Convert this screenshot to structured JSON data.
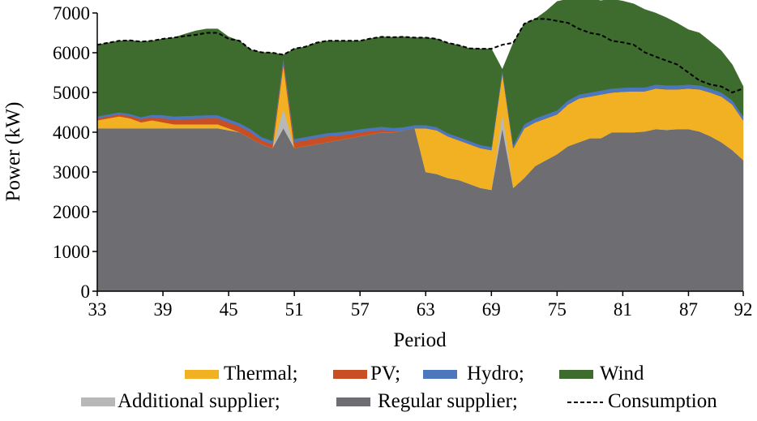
{
  "chart_data": {
    "type": "area",
    "stacked": true,
    "xlabel": "Period",
    "ylabel": "Power (kW)",
    "ylim": [
      0,
      7000
    ],
    "xlim": [
      33,
      92
    ],
    "yticks": [
      "0",
      "1000",
      "2000",
      "3000",
      "4000",
      "5000",
      "6000",
      "7000"
    ],
    "xticks": [
      "33",
      "39",
      "45",
      "51",
      "57",
      "63",
      "69",
      "75",
      "81",
      "87",
      "92"
    ],
    "x": [
      33,
      34,
      35,
      36,
      37,
      38,
      39,
      40,
      41,
      42,
      43,
      44,
      45,
      46,
      47,
      48,
      49,
      50,
      51,
      52,
      53,
      54,
      55,
      56,
      57,
      58,
      59,
      60,
      61,
      62,
      63,
      64,
      65,
      66,
      67,
      68,
      69,
      70,
      71,
      72,
      73,
      74,
      75,
      76,
      77,
      78,
      79,
      80,
      81,
      82,
      83,
      84,
      85,
      86,
      87,
      88,
      89,
      90,
      91,
      92
    ],
    "series": [
      {
        "name": "Regular supplier",
        "color": "#6e6d71",
        "values": [
          4100,
          4100,
          4100,
          4100,
          4100,
          4100,
          4100,
          4100,
          4100,
          4100,
          4100,
          4100,
          4050,
          4000,
          3850,
          3700,
          3600,
          4100,
          3600,
          3650,
          3700,
          3750,
          3800,
          3850,
          3900,
          3950,
          4000,
          4000,
          4050,
          4100,
          3000,
          2950,
          2850,
          2800,
          2700,
          2600,
          2550,
          4100,
          2600,
          2850,
          3150,
          3300,
          3450,
          3650,
          3750,
          3850,
          3850,
          4000,
          4000,
          4000,
          4020,
          4080,
          4060,
          4080,
          4080,
          4020,
          3900,
          3750,
          3550,
          3300
        ]
      },
      {
        "name": "Additional supplier",
        "color": "#b8b8b8",
        "values": [
          0,
          0,
          0,
          0,
          0,
          0,
          0,
          0,
          0,
          0,
          0,
          0,
          0,
          0,
          0,
          0,
          0,
          500,
          0,
          0,
          0,
          0,
          0,
          0,
          0,
          0,
          0,
          0,
          0,
          0,
          0,
          0,
          0,
          0,
          0,
          0,
          0,
          400,
          0,
          0,
          0,
          0,
          0,
          0,
          0,
          0,
          0,
          0,
          0,
          0,
          0,
          0,
          0,
          0,
          0,
          0,
          0,
          0,
          0,
          0
        ]
      },
      {
        "name": "Thermal",
        "color": "#f2b122",
        "values": [
          200,
          250,
          300,
          250,
          150,
          200,
          150,
          100,
          100,
          100,
          100,
          100,
          50,
          0,
          0,
          0,
          0,
          1100,
          0,
          0,
          0,
          0,
          0,
          0,
          0,
          0,
          0,
          0,
          0,
          0,
          1100,
          1100,
          1050,
          1000,
          1000,
          1000,
          1000,
          1000,
          1000,
          1250,
          1100,
          1050,
          1000,
          1050,
          1100,
          1050,
          1100,
          1000,
          1020,
          1030,
          1010,
          1020,
          1020,
          1000,
          1020,
          1060,
          1100,
          1150,
          1150,
          1000
        ]
      },
      {
        "name": "PV",
        "color": "#c84f23",
        "values": [
          50,
          50,
          50,
          60,
          80,
          80,
          100,
          120,
          130,
          140,
          150,
          150,
          150,
          150,
          150,
          100,
          100,
          100,
          150,
          150,
          150,
          150,
          120,
          100,
          100,
          80,
          60,
          30,
          0,
          0,
          0,
          0,
          0,
          0,
          0,
          0,
          0,
          0,
          0,
          0,
          0,
          0,
          0,
          0,
          0,
          0,
          0,
          0,
          0,
          0,
          0,
          0,
          0,
          0,
          0,
          0,
          0,
          0,
          0,
          0
        ]
      },
      {
        "name": "Hydro",
        "color": "#4d77bd",
        "values": [
          50,
          50,
          50,
          50,
          50,
          60,
          80,
          80,
          80,
          80,
          80,
          80,
          80,
          80,
          80,
          80,
          80,
          80,
          80,
          80,
          80,
          80,
          80,
          80,
          80,
          80,
          80,
          80,
          80,
          80,
          80,
          80,
          80,
          80,
          80,
          80,
          80,
          80,
          80,
          100,
          100,
          100,
          100,
          100,
          100,
          100,
          100,
          100,
          100,
          100,
          100,
          100,
          100,
          100,
          100,
          100,
          100,
          100,
          100,
          100
        ]
      },
      {
        "name": "Wind",
        "color": "#3e6b2e",
        "values": [
          1800,
          1800,
          1800,
          1850,
          1900,
          1860,
          1920,
          1980,
          2060,
          2130,
          2170,
          2170,
          2070,
          2070,
          2000,
          2130,
          2220,
          70,
          2270,
          2270,
          2320,
          2320,
          2300,
          2270,
          2220,
          2250,
          2260,
          2280,
          2270,
          2200,
          2200,
          2220,
          2270,
          2310,
          2330,
          2420,
          2470,
          0,
          2570,
          2530,
          2500,
          2600,
          2740,
          2550,
          2450,
          2360,
          2260,
          2250,
          2180,
          2100,
          1960,
          1800,
          1700,
          1560,
          1380,
          1320,
          1180,
          1050,
          900,
          750
        ]
      }
    ],
    "consumption": {
      "name": "Consumption",
      "style": "dashed",
      "values": [
        6200,
        6250,
        6300,
        6310,
        6280,
        6300,
        6350,
        6380,
        6420,
        6450,
        6500,
        6500,
        6350,
        6300,
        6080,
        6010,
        6000,
        5950,
        6100,
        6150,
        6250,
        6300,
        6300,
        6300,
        6300,
        6360,
        6400,
        6390,
        6400,
        6380,
        6380,
        6350,
        6250,
        6190,
        6110,
        6100,
        6100,
        6200,
        6250,
        6730,
        6850,
        6850,
        6800,
        6750,
        6600,
        6500,
        6450,
        6300,
        6260,
        6200,
        6010,
        5900,
        5800,
        5700,
        5500,
        5300,
        5200,
        5150,
        5000,
        5100
      ]
    },
    "legend": {
      "row1": [
        "Thermal;",
        "PV;",
        "Hydro;",
        "Wind"
      ],
      "row2": [
        "Additional supplier;",
        "Regular supplier;",
        "Consumption"
      ]
    }
  }
}
